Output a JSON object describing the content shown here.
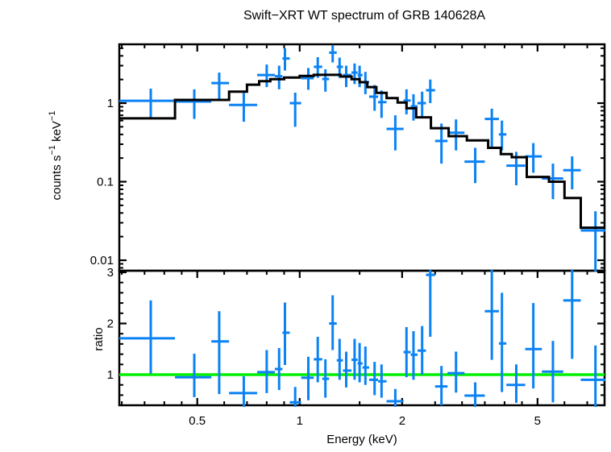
{
  "figure": {
    "title": "Swift−XRT WT spectrum of GRB 140628A",
    "background": "#ffffff"
  },
  "colors": {
    "data": "#0b82f4",
    "model": "#000000",
    "ratio_line": "#00f000",
    "axis": "#000000"
  },
  "axes": {
    "x": {
      "label": "Energy (keV)",
      "scale": "log",
      "min": 0.295,
      "max": 7.87,
      "major_ticks": [
        0.5,
        1,
        2,
        5
      ],
      "major_labels": [
        "0.5",
        "1",
        "2",
        "5"
      ],
      "minor_ticks": [
        0.3,
        0.35,
        0.4,
        0.45,
        0.6,
        0.7,
        0.8,
        0.9,
        1.5,
        2.5,
        3,
        3.5,
        4,
        4.5,
        6,
        7,
        8
      ]
    },
    "y_top": {
      "label": "counts s^{−1} keV^{−1}",
      "scale": "log",
      "min": 0.00736,
      "max": 5.61,
      "major_ticks": [
        0.01,
        0.1,
        1
      ],
      "major_labels": [
        "0.01",
        "0.1",
        "1"
      ],
      "minor_ticks": [
        0.008,
        0.009,
        0.02,
        0.03,
        0.04,
        0.05,
        0.06,
        0.07,
        0.08,
        0.09,
        0.2,
        0.3,
        0.4,
        0.5,
        0.6,
        0.7,
        0.8,
        0.9,
        2,
        3,
        4,
        5
      ]
    },
    "y_bottom": {
      "label": "ratio",
      "scale": "linear",
      "min": 0.402,
      "max": 3.031,
      "major_ticks": [
        1,
        2,
        3
      ],
      "major_labels": [
        "1",
        "2",
        "3"
      ],
      "minor_ticks": [
        0.6,
        0.8,
        1.2,
        1.4,
        1.6,
        1.8,
        2.2,
        2.4,
        2.6,
        2.8
      ]
    }
  },
  "chart_data": {
    "type": "scatter",
    "title": "Swift−XRT WT spectrum of GRB 140628A",
    "xlabel": "Energy (keV)",
    "panels": [
      {
        "name": "spectrum",
        "ylabel": "counts s−1 keV−1",
        "ylim": [
          0.00736,
          5.61
        ],
        "points_format": [
          "energy_keV",
          "e_lo",
          "e_hi",
          "counts",
          "c_lo",
          "c_hi"
        ],
        "data_points": [
          [
            0.365,
            0.295,
            0.43,
            1.07,
            0.64,
            1.53
          ],
          [
            0.49,
            0.43,
            0.55,
            1.05,
            0.63,
            1.5
          ],
          [
            0.58,
            0.55,
            0.62,
            1.8,
            1.12,
            2.45
          ],
          [
            0.685,
            0.62,
            0.75,
            0.95,
            0.58,
            1.35
          ],
          [
            0.8,
            0.75,
            0.845,
            2.28,
            1.6,
            3.1
          ],
          [
            0.87,
            0.845,
            0.89,
            2.2,
            1.5,
            3.0
          ],
          [
            0.905,
            0.89,
            0.935,
            3.7,
            2.6,
            5.0
          ],
          [
            0.97,
            0.935,
            1.01,
            1.0,
            0.5,
            1.36
          ],
          [
            1.06,
            1.01,
            1.1,
            2.08,
            1.48,
            2.8
          ],
          [
            1.13,
            1.1,
            1.165,
            2.9,
            2.1,
            3.85
          ],
          [
            1.19,
            1.165,
            1.22,
            2.03,
            1.4,
            2.7
          ],
          [
            1.25,
            1.22,
            1.285,
            4.4,
            3.3,
            5.45
          ],
          [
            1.31,
            1.285,
            1.34,
            2.9,
            2.1,
            3.8
          ],
          [
            1.37,
            1.34,
            1.42,
            2.28,
            1.6,
            3.0
          ],
          [
            1.45,
            1.42,
            1.48,
            2.45,
            1.75,
            3.2
          ],
          [
            1.5,
            1.48,
            1.53,
            2.28,
            1.6,
            3.0
          ],
          [
            1.56,
            1.53,
            1.6,
            1.85,
            1.3,
            2.5
          ],
          [
            1.66,
            1.6,
            1.7,
            1.21,
            0.8,
            1.7
          ],
          [
            1.74,
            1.7,
            1.8,
            1.03,
            0.65,
            1.45
          ],
          [
            1.91,
            1.8,
            2.02,
            0.47,
            0.25,
            0.7
          ],
          [
            2.06,
            2.02,
            2.12,
            1.08,
            0.72,
            1.5
          ],
          [
            2.16,
            2.12,
            2.22,
            0.91,
            0.6,
            1.3
          ],
          [
            2.29,
            2.22,
            2.35,
            1.0,
            0.65,
            1.4
          ],
          [
            2.42,
            2.35,
            2.5,
            1.46,
            1.0,
            2.0
          ],
          [
            2.61,
            2.5,
            2.72,
            0.33,
            0.17,
            0.55
          ],
          [
            2.88,
            2.72,
            3.05,
            0.42,
            0.25,
            0.62
          ],
          [
            3.28,
            3.05,
            3.5,
            0.18,
            0.096,
            0.27
          ],
          [
            3.67,
            3.5,
            3.85,
            0.63,
            0.28,
            0.85
          ],
          [
            3.93,
            3.85,
            4.05,
            0.4,
            0.25,
            0.6
          ],
          [
            4.33,
            4.05,
            4.6,
            0.16,
            0.09,
            0.24
          ],
          [
            4.86,
            4.6,
            5.15,
            0.21,
            0.13,
            0.31
          ],
          [
            5.55,
            5.15,
            5.95,
            0.11,
            0.06,
            0.17
          ],
          [
            6.32,
            5.95,
            6.7,
            0.14,
            0.08,
            0.21
          ],
          [
            7.4,
            6.7,
            8.5,
            0.024,
            0.006,
            0.042
          ]
        ],
        "model_steps": [
          [
            0.295,
            0.64
          ],
          [
            0.43,
            1.1
          ],
          [
            0.62,
            1.4
          ],
          [
            0.7,
            1.72
          ],
          [
            0.76,
            1.9
          ],
          [
            0.82,
            2.02
          ],
          [
            0.9,
            2.12
          ],
          [
            1.0,
            2.22
          ],
          [
            1.1,
            2.29
          ],
          [
            1.32,
            2.18
          ],
          [
            1.42,
            2.02
          ],
          [
            1.5,
            1.85
          ],
          [
            1.58,
            1.6
          ],
          [
            1.68,
            1.35
          ],
          [
            1.8,
            1.16
          ],
          [
            1.94,
            1.02
          ],
          [
            2.06,
            0.86
          ],
          [
            2.2,
            0.66
          ],
          [
            2.43,
            0.48
          ],
          [
            2.74,
            0.38
          ],
          [
            3.1,
            0.335
          ],
          [
            3.58,
            0.27
          ],
          [
            3.9,
            0.225
          ],
          [
            4.2,
            0.205
          ],
          [
            4.65,
            0.115
          ],
          [
            5.4,
            0.1
          ],
          [
            6.0,
            0.062
          ],
          [
            6.7,
            0.026
          ]
        ],
        "model_end": 8.5
      },
      {
        "name": "ratio",
        "ylabel": "ratio",
        "ylim": [
          0.402,
          3.031
        ],
        "unity_line": 1,
        "points_format": [
          "energy_keV",
          "e_lo",
          "e_hi",
          "ratio",
          "r_lo",
          "r_hi"
        ],
        "data_points": [
          [
            0.365,
            0.295,
            0.43,
            1.71,
            1.02,
            2.45
          ],
          [
            0.49,
            0.43,
            0.55,
            0.95,
            0.56,
            1.41
          ],
          [
            0.58,
            0.55,
            0.62,
            1.65,
            0.62,
            2.24
          ],
          [
            0.685,
            0.62,
            0.75,
            0.64,
            0.37,
            0.97
          ],
          [
            0.8,
            0.75,
            0.845,
            1.05,
            0.64,
            1.48
          ],
          [
            0.87,
            0.845,
            0.89,
            1.11,
            0.7,
            1.52
          ],
          [
            0.905,
            0.89,
            0.935,
            1.82,
            1.19,
            2.41
          ],
          [
            0.97,
            0.935,
            1.01,
            0.46,
            0.37,
            0.76
          ],
          [
            1.06,
            1.01,
            1.1,
            0.94,
            0.5,
            1.35
          ],
          [
            1.13,
            1.1,
            1.165,
            1.3,
            0.85,
            1.74
          ],
          [
            1.19,
            1.165,
            1.22,
            0.92,
            0.55,
            1.3
          ],
          [
            1.25,
            1.22,
            1.285,
            2.0,
            1.48,
            2.55
          ],
          [
            1.31,
            1.285,
            1.34,
            1.28,
            0.9,
            1.7
          ],
          [
            1.37,
            1.34,
            1.42,
            1.08,
            0.75,
            1.45
          ],
          [
            1.45,
            1.42,
            1.48,
            1.29,
            0.9,
            1.7
          ],
          [
            1.5,
            1.48,
            1.53,
            1.22,
            0.85,
            1.62
          ],
          [
            1.56,
            1.53,
            1.6,
            1.14,
            0.8,
            1.55
          ],
          [
            1.66,
            1.6,
            1.7,
            0.9,
            0.6,
            1.25
          ],
          [
            1.74,
            1.7,
            1.8,
            0.87,
            0.55,
            1.2
          ],
          [
            1.91,
            1.8,
            2.02,
            0.48,
            0.37,
            0.72
          ],
          [
            2.06,
            2.02,
            2.12,
            1.44,
            0.95,
            1.93
          ],
          [
            2.16,
            2.12,
            2.22,
            1.39,
            0.9,
            1.85
          ],
          [
            2.29,
            2.22,
            2.35,
            1.47,
            1.0,
            1.95
          ],
          [
            2.42,
            2.35,
            2.5,
            2.95,
            1.74,
            3.1
          ],
          [
            2.61,
            2.5,
            2.72,
            0.77,
            0.4,
            1.17
          ],
          [
            2.88,
            2.72,
            3.05,
            1.03,
            0.65,
            1.45
          ],
          [
            3.28,
            3.05,
            3.5,
            0.59,
            0.37,
            0.85
          ],
          [
            3.67,
            3.5,
            3.85,
            2.24,
            1.29,
            3.1
          ],
          [
            3.93,
            3.85,
            4.05,
            1.61,
            0.66,
            2.6
          ],
          [
            4.33,
            4.05,
            4.6,
            0.8,
            0.45,
            1.2
          ],
          [
            4.86,
            4.6,
            5.15,
            1.5,
            0.73,
            2.4
          ],
          [
            5.55,
            5.15,
            5.95,
            1.06,
            0.46,
            1.66
          ],
          [
            6.32,
            5.95,
            6.7,
            2.45,
            1.31,
            3.1
          ],
          [
            7.4,
            6.7,
            8.5,
            0.9,
            0.37,
            1.57
          ]
        ]
      }
    ]
  }
}
